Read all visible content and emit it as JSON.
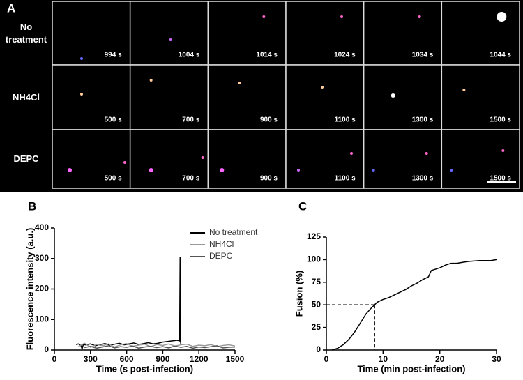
{
  "panel_a": {
    "panel_label": "A",
    "rows": [
      {
        "label": "No treatment",
        "times": [
          "994 s",
          "1004 s",
          "1014 s",
          "1024 s",
          "1034 s",
          "1044 s"
        ]
      },
      {
        "label": "NH4Cl",
        "times": [
          "500 s",
          "700 s",
          "900 s",
          "1100 s",
          "1300 s",
          "1500 s"
        ]
      },
      {
        "label": "DEPC",
        "times": [
          "500 s",
          "700 s",
          "900 s",
          "1100 s",
          "1300 s",
          "1500 s"
        ]
      }
    ]
  },
  "chart_data": [
    {
      "type": "line",
      "panel_label": "B",
      "ylabel": "Fluorescence intensity (a.u.)",
      "xlabel": "Time (s post-infection)",
      "xlim": [
        0,
        1500
      ],
      "xticks": [
        0,
        300,
        600,
        900,
        1200,
        1500
      ],
      "ylim": [
        0,
        400
      ],
      "yticks": [
        0,
        100,
        200,
        300,
        400
      ],
      "series": [
        {
          "name": "No treatment",
          "color": "#000000",
          "x": [
            180,
            200,
            220,
            230,
            240,
            260,
            300,
            340,
            380,
            420,
            460,
            500,
            540,
            580,
            620,
            660,
            700,
            740,
            780,
            820,
            860,
            900,
            940,
            980,
            1020,
            1040,
            1044,
            1046,
            1050,
            1060
          ],
          "values": [
            18,
            20,
            15,
            3,
            18,
            17,
            20,
            14,
            18,
            21,
            16,
            19,
            22,
            17,
            20,
            23,
            18,
            21,
            24,
            20,
            22,
            26,
            28,
            30,
            32,
            30,
            305,
            30,
            20,
            18
          ]
        },
        {
          "name": "NH4Cl",
          "color": "#999999",
          "x": [
            200,
            250,
            300,
            350,
            400,
            450,
            500,
            550,
            600,
            650,
            700,
            750,
            800,
            850,
            900,
            950,
            1000,
            1050,
            1100,
            1150,
            1200,
            1250,
            1300,
            1350,
            1400,
            1450,
            1500
          ],
          "values": [
            12,
            22,
            9,
            18,
            14,
            20,
            10,
            17,
            21,
            12,
            16,
            19,
            11,
            18,
            15,
            20,
            13,
            17,
            19,
            12,
            16,
            14,
            18,
            11,
            15,
            17,
            13
          ]
        },
        {
          "name": "DEPC",
          "color": "#555555",
          "x": [
            250,
            300,
            350,
            400,
            450,
            500,
            550,
            600,
            650,
            700,
            750,
            800,
            850,
            900,
            950,
            1000,
            1050,
            1100,
            1150,
            1200,
            1250,
            1300,
            1350,
            1400,
            1450,
            1500
          ],
          "values": [
            8,
            12,
            6,
            10,
            14,
            7,
            11,
            9,
            13,
            6,
            10,
            12,
            8,
            11,
            7,
            13,
            9,
            12,
            6,
            10,
            8,
            11,
            14,
            7,
            9,
            10
          ]
        }
      ]
    },
    {
      "type": "line",
      "panel_label": "C",
      "ylabel": "Fusion (%)",
      "xlabel": "Time (min post-infection)",
      "xlim": [
        0,
        30
      ],
      "xticks": [
        0,
        10,
        20,
        30
      ],
      "ylim": [
        0,
        125
      ],
      "yticks": [
        0,
        25,
        50,
        75,
        100,
        125
      ],
      "reference_x": 8.5,
      "reference_y": 50,
      "series": [
        {
          "color": "#000000",
          "x": [
            1,
            2,
            3,
            4,
            5,
            6,
            7,
            8,
            8.5,
            9,
            10,
            11,
            12,
            13,
            14,
            15,
            16,
            17,
            18,
            18.5,
            20,
            21,
            22,
            23,
            24,
            25,
            27,
            29,
            30
          ],
          "values": [
            0,
            2,
            6,
            12,
            20,
            30,
            40,
            47,
            50,
            53,
            56,
            58,
            61,
            64,
            67,
            71,
            74,
            78,
            81,
            88,
            91,
            94,
            96,
            96,
            97,
            98,
            99,
            99,
            100
          ]
        }
      ]
    }
  ]
}
